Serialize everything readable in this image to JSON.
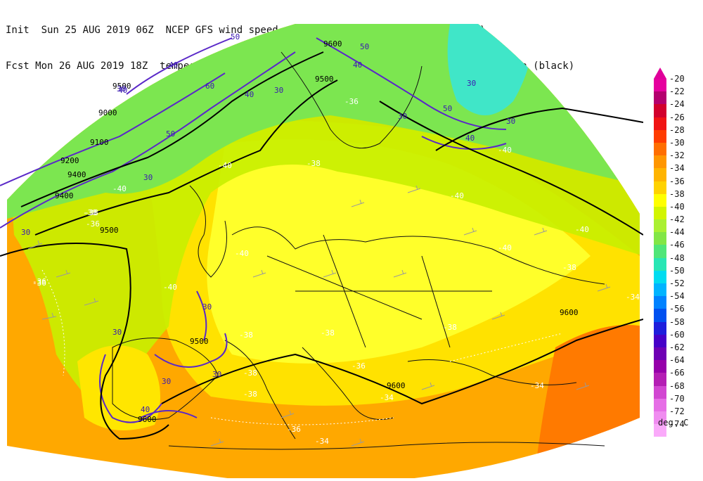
{
  "header": {
    "line1": "Init  Sun 25 AUG 2019 06Z  NCEP GFS wind speed at 300 hPa in m/s (contours/barbs)",
    "line2": "Fcst Mon 26 AUG 2019 18Z  temperature (shaded/dotted) and geopotential height at 300 hPa (black)"
  },
  "legend": {
    "units": "deg. C",
    "items": [
      {
        "label": "-20",
        "color": "#e6009e"
      },
      {
        "label": "-22",
        "color": "#b4006e"
      },
      {
        "label": "-24",
        "color": "#d2002d"
      },
      {
        "label": "-26",
        "color": "#f01414"
      },
      {
        "label": "-28",
        "color": "#ff3c00"
      },
      {
        "label": "-30",
        "color": "#ff6e00"
      },
      {
        "label": "-32",
        "color": "#ff9600"
      },
      {
        "label": "-34",
        "color": "#ffb400"
      },
      {
        "label": "-36",
        "color": "#ffd200"
      },
      {
        "label": "-38",
        "color": "#ffff00"
      },
      {
        "label": "-40",
        "color": "#d2f500"
      },
      {
        "label": "-42",
        "color": "#aaf032"
      },
      {
        "label": "-44",
        "color": "#82e646"
      },
      {
        "label": "-46",
        "color": "#50e678"
      },
      {
        "label": "-48",
        "color": "#28e6b4"
      },
      {
        "label": "-50",
        "color": "#00dcf0"
      },
      {
        "label": "-52",
        "color": "#00b4ff"
      },
      {
        "label": "-54",
        "color": "#0082ff"
      },
      {
        "label": "-56",
        "color": "#0050f0"
      },
      {
        "label": "-58",
        "color": "#1e1edc"
      },
      {
        "label": "-60",
        "color": "#4600c8"
      },
      {
        "label": "-62",
        "color": "#6e00b4"
      },
      {
        "label": "-64",
        "color": "#9600aa"
      },
      {
        "label": "-66",
        "color": "#b41eb4"
      },
      {
        "label": "-68",
        "color": "#d246d2"
      },
      {
        "label": "-70",
        "color": "#e66ee6"
      },
      {
        "label": "-72",
        "color": "#f08cf0"
      },
      {
        "label": "-74",
        "color": "#faaafa"
      }
    ]
  },
  "map": {
    "height_labels": [
      "9000",
      "9100",
      "9200",
      "9400",
      "9500",
      "9500",
      "9600",
      "9600",
      "9600",
      "9400",
      "9500",
      "9500",
      "9600"
    ],
    "wind_labels": [
      "30",
      "40",
      "50",
      "60",
      "40",
      "30",
      "30",
      "50",
      "40",
      "50",
      "50",
      "30",
      "30",
      "40",
      "30",
      "40",
      "30",
      "30",
      "30",
      "30",
      "40",
      "30"
    ],
    "temp_labels": [
      "-36",
      "-36",
      "-38",
      "-38",
      "-40",
      "-40",
      "-40",
      "-40",
      "-40",
      "-40",
      "-40",
      "-38",
      "-38",
      "-38",
      "-38",
      "-38",
      "-36",
      "-34",
      "-34",
      "-34",
      "-34",
      "-36",
      "-38",
      "-40",
      "-36",
      "-36",
      "-38"
    ],
    "land_colors": {
      "warm": "#ff7a00",
      "orange": "#ffa500",
      "yellow": "#ffff2a",
      "lime": "#c8f000",
      "green": "#78e650",
      "cyan": "#3ce6c8"
    }
  }
}
